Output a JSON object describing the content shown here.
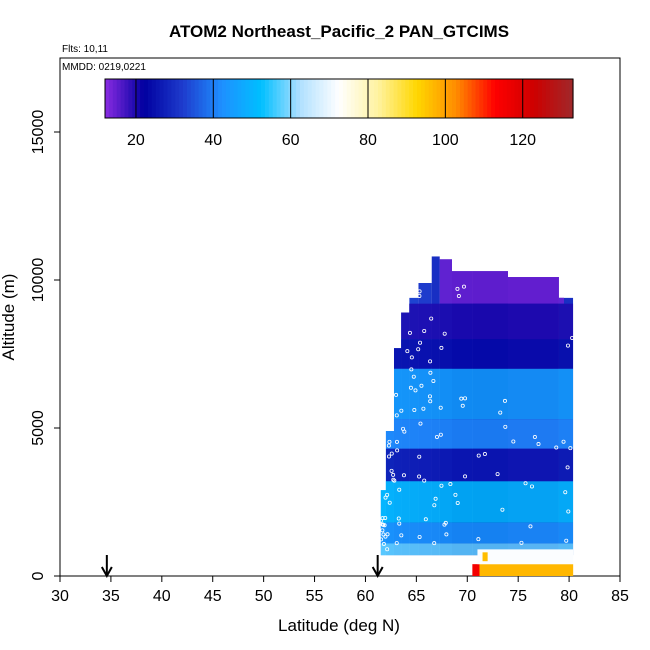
{
  "chart_data": {
    "type": "heatmap",
    "title": "ATOM2 Northeast_Pacific_2 PAN_GTCIMS",
    "flights_label": "Flts: 10,11",
    "mmdd_label": "MMDD: 0219,0221",
    "xlabel": "Latitude (deg N)",
    "ylabel": "Altitude (m)",
    "xlim": [
      30,
      85
    ],
    "ylim": [
      0,
      17500
    ],
    "x_ticks": [
      "30",
      "35",
      "40",
      "45",
      "50",
      "55",
      "60",
      "65",
      "70",
      "75",
      "80",
      "85"
    ],
    "y_ticks": [
      "0",
      "5000",
      "10000",
      "15000"
    ],
    "colorbar": {
      "range": [
        12,
        133
      ],
      "tick_values": [
        20,
        40,
        60,
        80,
        100,
        120
      ],
      "tick_labels": [
        "20",
        "40",
        "60",
        "80",
        "100",
        "120"
      ],
      "colors": [
        "#8a2be2",
        "#0000a0",
        "#1e3ccd",
        "#1e90ff",
        "#00bfff",
        "#b0e0ff",
        "#ffffff",
        "#fff2a0",
        "#ffd700",
        "#ff8c00",
        "#ff0000",
        "#cd0000",
        "#a0282a"
      ]
    },
    "arrows_latitude": [
      34.6,
      61.2
    ],
    "columns": [
      {
        "lat": [
          61.5,
          62.0
        ],
        "alt": [
          700,
          2900
        ],
        "ppt": 42
      },
      {
        "lat": [
          62.0,
          62.8
        ],
        "alt": [
          700,
          4900
        ],
        "ppt": 38
      },
      {
        "lat": [
          62.8,
          63.5
        ],
        "alt": [
          700,
          7700
        ],
        "ppt": 35
      },
      {
        "lat": [
          63.5,
          64.3
        ],
        "alt": [
          700,
          8900
        ],
        "ppt": 34
      },
      {
        "lat": [
          64.3,
          65.2
        ],
        "alt": [
          700,
          9400
        ],
        "ppt": 33
      },
      {
        "lat": [
          65.2,
          66.5
        ],
        "alt": [
          700,
          9900
        ],
        "ppt": 32
      },
      {
        "lat": [
          66.5,
          67.3
        ],
        "alt": [
          700,
          10800
        ],
        "ppt": 30
      },
      {
        "lat": [
          67.3,
          68.5
        ],
        "alt": [
          700,
          10700
        ],
        "ppt": 28
      },
      {
        "lat": [
          68.5,
          70.5
        ],
        "alt": [
          700,
          10300
        ],
        "ppt": 24
      },
      {
        "lat": [
          70.5,
          74.0
        ],
        "alt": [
          700,
          10300
        ],
        "ppt": 22
      },
      {
        "lat": [
          74.0,
          79.0
        ],
        "alt": [
          700,
          10100
        ],
        "ppt": 20
      },
      {
        "lat": [
          79.0,
          80.4
        ],
        "alt": [
          700,
          9400
        ],
        "ppt": 30
      }
    ],
    "layers": [
      {
        "alt": [
          9200,
          10800
        ],
        "lat": [
          67.3,
          79.5
        ],
        "ppt": 14
      },
      {
        "alt": [
          8000,
          9200
        ],
        "lat": [
          63.5,
          80.4
        ],
        "ppt": 20
      },
      {
        "alt": [
          7000,
          8000
        ],
        "lat": [
          62.8,
          80.4
        ],
        "ppt": 24
      },
      {
        "alt": [
          5300,
          7000
        ],
        "lat": [
          62.8,
          80.4
        ],
        "ppt": 46
      },
      {
        "alt": [
          4300,
          5300
        ],
        "lat": [
          62.0,
          80.4
        ],
        "ppt": 42
      },
      {
        "alt": [
          3200,
          4300
        ],
        "lat": [
          62.0,
          80.4
        ],
        "ppt": 26
      },
      {
        "alt": [
          1800,
          3200
        ],
        "lat": [
          61.5,
          80.4
        ],
        "ppt": 52
      },
      {
        "alt": [
          1100,
          1800
        ],
        "lat": [
          61.5,
          80.4
        ],
        "ppt": 44
      },
      {
        "alt": [
          500,
          1100
        ],
        "lat": [
          61.5,
          80.4
        ],
        "ppt": 58
      }
    ],
    "surface_cells": [
      {
        "lat": [
          70.5,
          71.2
        ],
        "alt": [
          0,
          400
        ],
        "ppt": 115
      },
      {
        "lat": [
          71.2,
          80.4
        ],
        "alt": [
          0,
          400
        ],
        "ppt": 97
      },
      {
        "lat": [
          71.0,
          80.4
        ],
        "alt": [
          400,
          900
        ],
        "ppt": 72
      },
      {
        "lat": [
          71.5,
          72.0
        ],
        "alt": [
          500,
          800
        ],
        "ppt": 96
      }
    ]
  }
}
